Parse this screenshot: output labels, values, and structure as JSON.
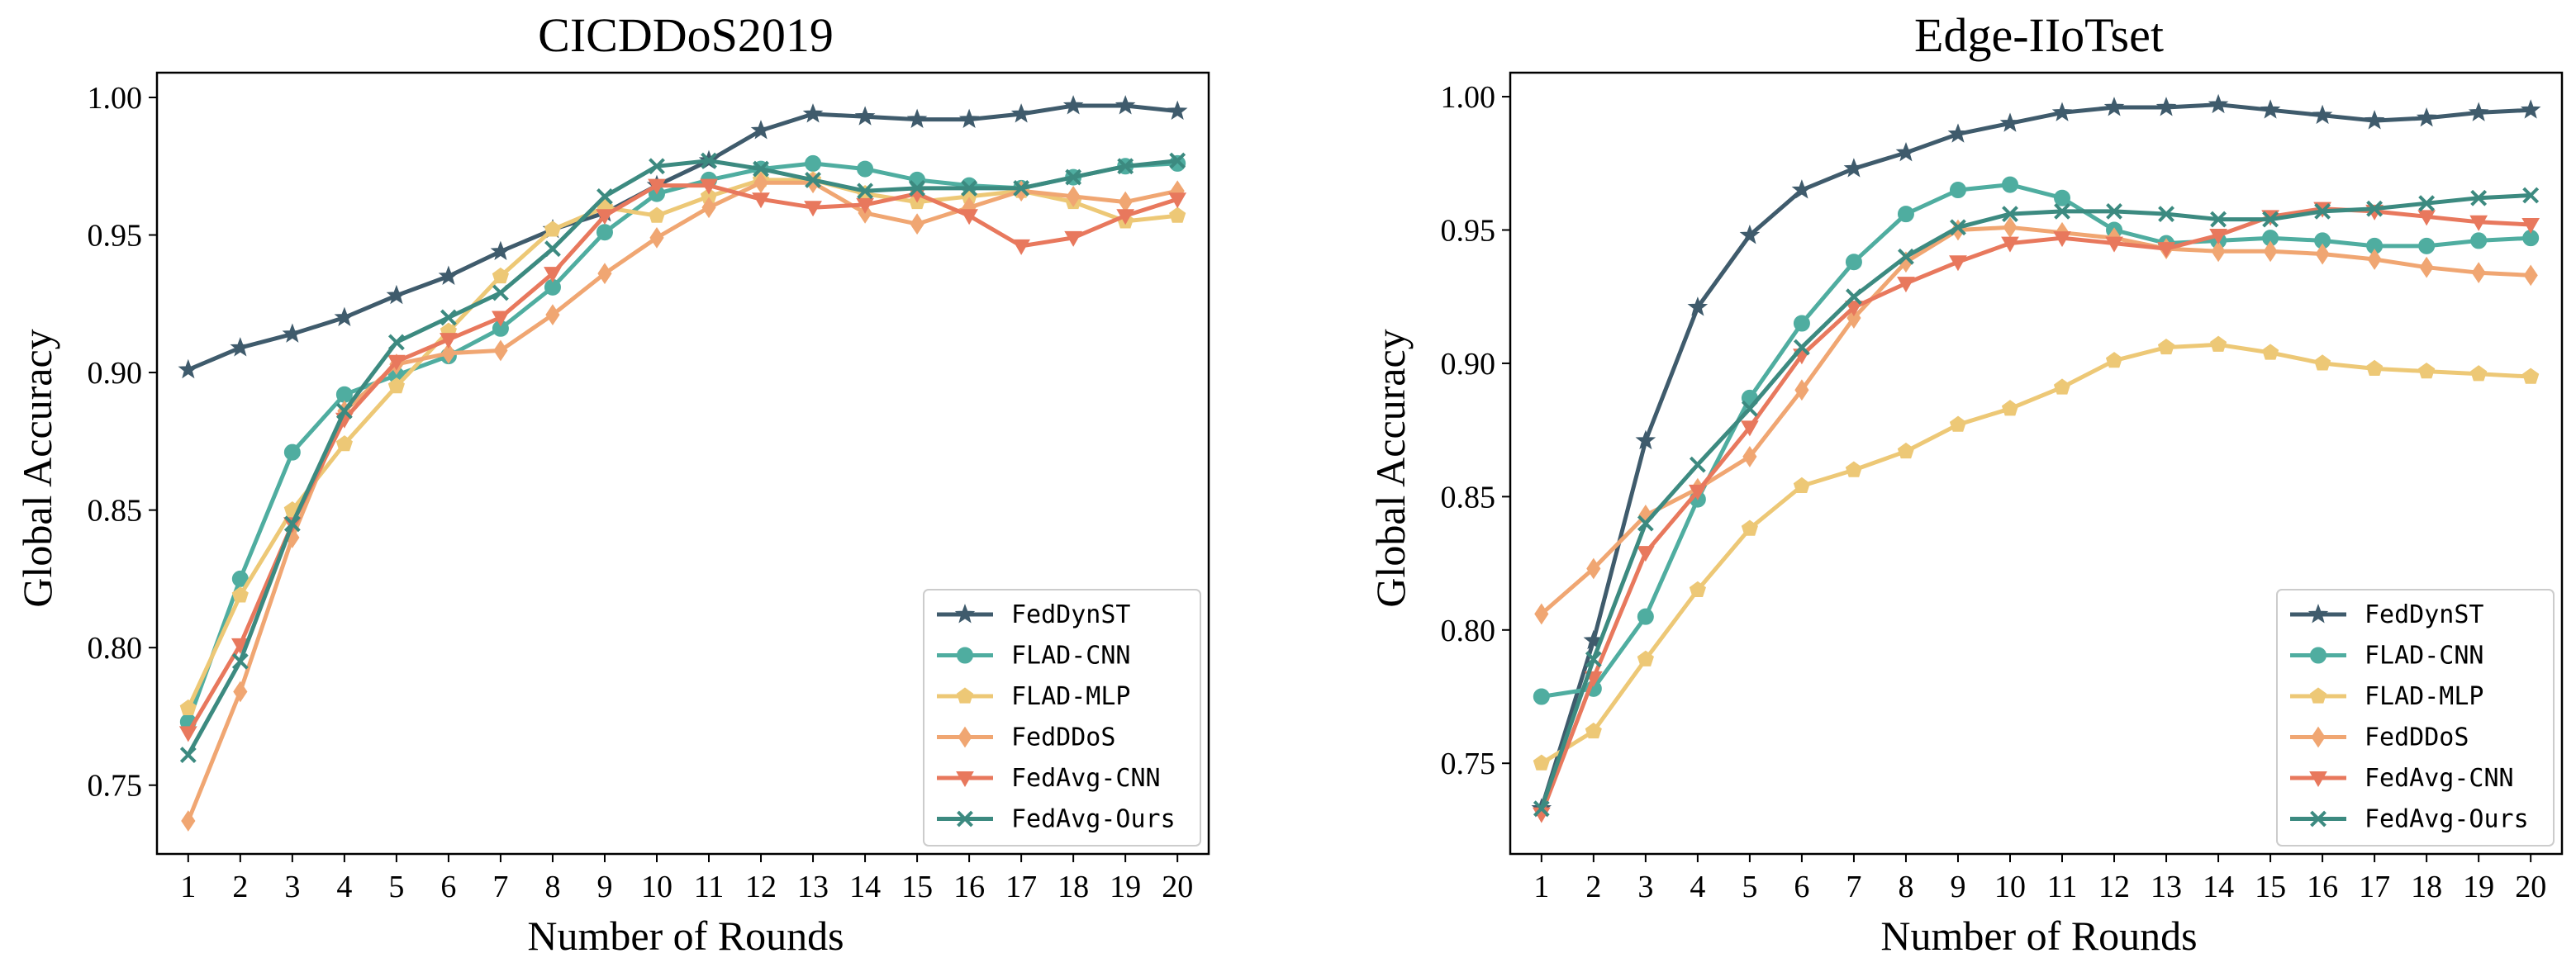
{
  "chart_data": [
    {
      "type": "line",
      "title": "CICDDoS2019",
      "xlabel": "Number of Rounds",
      "ylabel": "Global Accuracy",
      "ylim": [
        0.725,
        1.009
      ],
      "xlim": [
        0.4,
        20.6
      ],
      "yticks": [
        "0.75",
        "0.80",
        "0.85",
        "0.90",
        "0.95",
        "1.00"
      ],
      "x": [
        "1",
        "2",
        "3",
        "4",
        "5",
        "6",
        "7",
        "8",
        "9",
        "10",
        "11",
        "12",
        "13",
        "14",
        "15",
        "16",
        "17",
        "18",
        "19",
        "20"
      ],
      "legend_position": "lower-right",
      "series": [
        {
          "name": "FedDynST",
          "color": "#3F5B6C",
          "marker": "star",
          "values": [
            0.901,
            0.909,
            0.914,
            0.92,
            0.928,
            0.935,
            0.944,
            0.952,
            0.958,
            0.968,
            0.977,
            0.988,
            0.994,
            0.993,
            0.992,
            0.992,
            0.994,
            0.997,
            0.997,
            0.995
          ]
        },
        {
          "name": "FLAD-CNN",
          "color": "#4FADA0",
          "marker": "circle",
          "values": [
            0.773,
            0.825,
            0.871,
            0.892,
            0.899,
            0.906,
            0.916,
            0.931,
            0.951,
            0.965,
            0.97,
            0.974,
            0.976,
            0.974,
            0.97,
            0.968,
            0.967,
            0.971,
            0.975,
            0.976
          ]
        },
        {
          "name": "FLAD-MLP",
          "color": "#EDC876",
          "marker": "pentagon",
          "values": [
            0.778,
            0.819,
            0.85,
            0.874,
            0.895,
            0.915,
            0.935,
            0.952,
            0.96,
            0.957,
            0.964,
            0.97,
            0.97,
            0.965,
            0.962,
            0.964,
            0.966,
            0.962,
            0.955,
            0.957
          ]
        },
        {
          "name": "FedDDoS",
          "color": "#F0A672",
          "marker": "diamond",
          "values": [
            0.737,
            0.784,
            0.84,
            0.886,
            0.903,
            0.907,
            0.908,
            0.921,
            0.936,
            0.949,
            0.96,
            0.969,
            0.969,
            0.958,
            0.954,
            0.96,
            0.966,
            0.964,
            0.962,
            0.966
          ]
        },
        {
          "name": "FedAvg-CNN",
          "color": "#E8785D",
          "marker": "triangle-down",
          "values": [
            0.769,
            0.801,
            0.845,
            0.883,
            0.904,
            0.912,
            0.92,
            0.936,
            0.957,
            0.968,
            0.968,
            0.963,
            0.96,
            0.961,
            0.965,
            0.957,
            0.946,
            0.949,
            0.957,
            0.963
          ]
        },
        {
          "name": "FedAvg-Ours",
          "color": "#3C8A80",
          "marker": "x",
          "values": [
            0.761,
            0.795,
            0.845,
            0.886,
            0.911,
            0.92,
            0.929,
            0.945,
            0.964,
            0.975,
            0.977,
            0.974,
            0.97,
            0.966,
            0.967,
            0.967,
            0.967,
            0.971,
            0.975,
            0.977
          ]
        }
      ]
    },
    {
      "type": "line",
      "title": "Edge-IIoTset",
      "xlabel": "Number of Rounds",
      "ylabel": "Global Accuracy",
      "ylim": [
        0.716,
        1.009
      ],
      "xlim": [
        0.4,
        20.6
      ],
      "yticks": [
        "0.75",
        "0.80",
        "0.85",
        "0.90",
        "0.95",
        "1.00"
      ],
      "x": [
        "1",
        "2",
        "3",
        "4",
        "5",
        "6",
        "7",
        "8",
        "9",
        "10",
        "11",
        "12",
        "13",
        "14",
        "15",
        "16",
        "17",
        "18",
        "19",
        "20"
      ],
      "legend_position": "lower-right",
      "series": [
        {
          "name": "FedDynST",
          "color": "#3F5B6C",
          "marker": "star",
          "values": [
            0.733,
            0.796,
            0.871,
            0.921,
            0.948,
            0.965,
            0.973,
            0.979,
            0.986,
            0.99,
            0.994,
            0.996,
            0.996,
            0.997,
            0.995,
            0.993,
            0.991,
            0.992,
            0.994,
            0.995
          ]
        },
        {
          "name": "FLAD-CNN",
          "color": "#4FADA0",
          "marker": "circle",
          "values": [
            0.775,
            0.778,
            0.805,
            0.849,
            0.887,
            0.915,
            0.938,
            0.956,
            0.965,
            0.967,
            0.962,
            0.95,
            0.945,
            0.946,
            0.947,
            0.946,
            0.944,
            0.944,
            0.946,
            0.947
          ]
        },
        {
          "name": "FLAD-MLP",
          "color": "#EDC876",
          "marker": "pentagon",
          "values": [
            0.75,
            0.762,
            0.789,
            0.815,
            0.838,
            0.854,
            0.86,
            0.867,
            0.877,
            0.883,
            0.891,
            0.901,
            0.906,
            0.907,
            0.904,
            0.9,
            0.898,
            0.897,
            0.896,
            0.895
          ]
        },
        {
          "name": "FedDDoS",
          "color": "#F0A672",
          "marker": "diamond",
          "values": [
            0.806,
            0.823,
            0.843,
            0.853,
            0.865,
            0.89,
            0.917,
            0.938,
            0.95,
            0.951,
            0.949,
            0.947,
            0.943,
            0.942,
            0.942,
            0.941,
            0.939,
            0.936,
            0.934,
            0.933
          ]
        },
        {
          "name": "FedAvg-CNN",
          "color": "#E8785D",
          "marker": "triangle-down",
          "values": [
            0.731,
            0.782,
            0.829,
            0.852,
            0.876,
            0.903,
            0.921,
            0.93,
            0.938,
            0.945,
            0.947,
            0.945,
            0.943,
            0.948,
            0.955,
            0.958,
            0.957,
            0.955,
            0.953,
            0.952
          ]
        },
        {
          "name": "FedAvg-Ours",
          "color": "#3C8A80",
          "marker": "x",
          "values": [
            0.733,
            0.789,
            0.84,
            0.862,
            0.883,
            0.906,
            0.925,
            0.94,
            0.951,
            0.956,
            0.957,
            0.957,
            0.956,
            0.954,
            0.954,
            0.957,
            0.958,
            0.96,
            0.962,
            0.963
          ]
        }
      ]
    }
  ]
}
